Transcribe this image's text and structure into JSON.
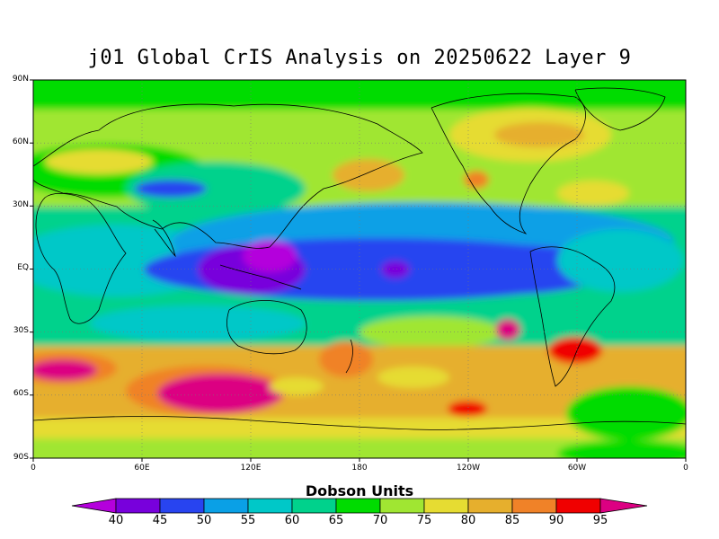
{
  "title": "j01 Global CrIS Analysis on 20250622 Layer 9",
  "map": {
    "lat_labels": [
      "90N",
      "60N",
      "30N",
      "EQ",
      "30S",
      "60S",
      "90S"
    ],
    "lon_labels": [
      "0",
      "60E",
      "120E",
      "180",
      "120W",
      "60W",
      "0"
    ],
    "grid": "dotted"
  },
  "colorbar": {
    "title": "Dobson Units",
    "levels": [
      "40",
      "45",
      "50",
      "55",
      "60",
      "65",
      "70",
      "75",
      "80",
      "85",
      "90",
      "95"
    ],
    "colors": [
      "#b400dc",
      "#7800dc",
      "#2844f0",
      "#0aa0e6",
      "#00c8c8",
      "#00d28c",
      "#00dc00",
      "#a0e632",
      "#e6dc32",
      "#e6af2d",
      "#f08228",
      "#f00000",
      "#dc0082"
    ]
  }
}
